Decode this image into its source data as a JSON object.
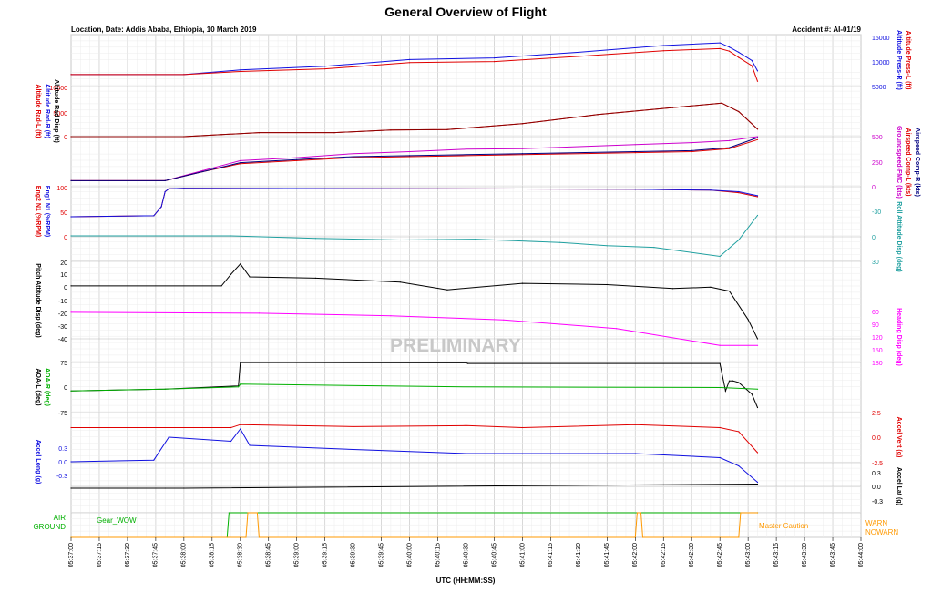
{
  "title": "General Overview of Flight",
  "location": "Location, Date: Addis Ababa, Ethiopia, 10 March 2019",
  "accident": "Accident #: AI-01/19",
  "watermark": "PRELIMINARY",
  "xlabel": "UTC (HH:MM:SS)",
  "colors": {
    "red": "#e00000",
    "darkred": "#8b0000",
    "blue": "#1010e0",
    "purple": "#cc00cc",
    "navy": "#000080",
    "teal": "#20a0a0",
    "black": "#000000",
    "magenta": "#ff00ff",
    "green": "#00b000",
    "orange": "#ff9900",
    "grid": "#cfcfcf",
    "gridMinor": "#ececec"
  },
  "chart_data": [
    {
      "type": "line",
      "panel": "altitude-press",
      "x_ticks": [
        "05:37:00",
        "05:37:15",
        "05:37:30",
        "05:37:45",
        "05:38:00",
        "05:38:15",
        "05:38:30",
        "05:38:45",
        "05:39:00",
        "05:39:15",
        "05:39:30",
        "05:39:45",
        "05:40:00",
        "05:40:15",
        "05:40:30",
        "05:40:45",
        "05:41:00",
        "05:41:15",
        "05:41:30",
        "05:41:45",
        "05:42:00",
        "05:42:15",
        "05:42:30",
        "05:42:45",
        "05:43:00",
        "05:43:15",
        "05:43:30",
        "05:43:45",
        "05:44:00"
      ],
      "right_labels": [
        "Altitude Press-R (ft)",
        "Altitude Press-L (ft)"
      ],
      "yticks": [
        "15000",
        "10000",
        "5000"
      ],
      "series": [
        {
          "name": "Altitude Press-R (ft)",
          "color": "blue",
          "t": [
            0,
            60,
            90,
            135,
            180,
            225,
            270,
            315,
            345,
            350,
            355,
            362,
            365
          ],
          "v": [
            7300,
            7300,
            8200,
            8900,
            10200,
            10500,
            11600,
            12900,
            13400,
            12600,
            11600,
            10000,
            8000
          ]
        },
        {
          "name": "Altitude Press-L (ft)",
          "color": "red",
          "t": [
            0,
            60,
            90,
            135,
            180,
            225,
            270,
            315,
            345,
            350,
            355,
            362,
            365
          ],
          "v": [
            7300,
            7300,
            7900,
            8400,
            9600,
            9800,
            10800,
            11900,
            12300,
            11800,
            10600,
            9000,
            6000
          ]
        }
      ]
    },
    {
      "type": "line",
      "panel": "altitude-rad",
      "left_labels": [
        "Altitude Rad-L (ft)",
        "Altitude Rad-R (ft)",
        "Altitude Rad Disp (ft)"
      ],
      "yticks": [
        "10000",
        "5000",
        "0"
      ],
      "series": [
        {
          "name": "Altitude Rad-L (ft)",
          "color": "red",
          "t": [
            0,
            60,
            80,
            100,
            140,
            170,
            200,
            240,
            280,
            320,
            346,
            355,
            365
          ],
          "v": [
            0,
            0,
            400,
            800,
            800,
            1300,
            1400,
            2600,
            4400,
            5800,
            6700,
            5000,
            1500
          ]
        },
        {
          "name": "Altitude Rad-R (ft)",
          "color": "darkred",
          "t": [
            0,
            60,
            80,
            100,
            140,
            170,
            200,
            240,
            280,
            320,
            346,
            355,
            365
          ],
          "v": [
            0,
            0,
            400,
            800,
            800,
            1300,
            1400,
            2600,
            4400,
            5800,
            6700,
            5000,
            1500
          ]
        }
      ]
    },
    {
      "type": "line",
      "panel": "airspeed",
      "right_labels": [
        "Groundspeed-FMC (kts)",
        "Airspeed Comp-L (kts)",
        "Airspeed Comp-R (kts)"
      ],
      "yticks": [
        "500",
        "250",
        "0"
      ],
      "series": [
        {
          "name": "Groundspeed-FMC (kts)",
          "color": "purple",
          "t": [
            0,
            50,
            70,
            90,
            120,
            150,
            180,
            210,
            240,
            270,
            300,
            330,
            350,
            365
          ],
          "v": [
            60,
            60,
            160,
            260,
            290,
            330,
            350,
            375,
            380,
            400,
            420,
            440,
            460,
            500
          ]
        },
        {
          "name": "Airspeed Comp-L (kts)",
          "color": "red",
          "t": [
            0,
            50,
            70,
            90,
            120,
            150,
            180,
            210,
            240,
            270,
            300,
            330,
            350,
            365
          ],
          "v": [
            60,
            60,
            150,
            230,
            260,
            290,
            300,
            310,
            320,
            330,
            340,
            350,
            380,
            470
          ]
        },
        {
          "name": "Airspeed Comp-R (kts)",
          "color": "navy",
          "t": [
            0,
            50,
            70,
            90,
            120,
            150,
            180,
            210,
            240,
            270,
            300,
            330,
            350,
            365
          ],
          "v": [
            60,
            60,
            150,
            240,
            270,
            300,
            310,
            320,
            330,
            340,
            350,
            360,
            390,
            490
          ]
        }
      ]
    },
    {
      "type": "line",
      "panel": "n1",
      "left_labels": [
        "Eng2 N1 (%RPM)",
        "Eng1 N1 (%RPM)"
      ],
      "yticks": [
        "100",
        "50",
        "0"
      ],
      "series": [
        {
          "name": "Eng2 N1 (%RPM)",
          "color": "red",
          "t": [
            0,
            44,
            48,
            50,
            52,
            60,
            300,
            340,
            355,
            365
          ],
          "v": [
            40,
            42,
            60,
            90,
            96,
            97,
            95,
            93,
            88,
            80
          ]
        },
        {
          "name": "Eng1 N1 (%RPM)",
          "color": "blue",
          "t": [
            0,
            44,
            48,
            50,
            52,
            60,
            300,
            340,
            355,
            365
          ],
          "v": [
            40,
            42,
            60,
            90,
            96,
            97,
            95,
            93,
            90,
            82
          ]
        }
      ]
    },
    {
      "type": "line",
      "panel": "roll",
      "right_labels": [
        "Roll Attitude Disp (deg)"
      ],
      "yticks": [
        "-30",
        "0",
        "30"
      ],
      "series": [
        {
          "name": "Roll Attitude Disp (deg)",
          "color": "teal",
          "t": [
            0,
            85,
            130,
            175,
            215,
            260,
            285,
            310,
            345,
            355,
            365
          ],
          "v": [
            0,
            0,
            3,
            5,
            4,
            8,
            12,
            14,
            25,
            5,
            -25
          ]
        }
      ]
    },
    {
      "type": "line",
      "panel": "pitch",
      "left_labels": [
        "Pitch Attitude Disp (deg)"
      ],
      "yticks": [
        "20",
        "10",
        "0",
        "-10",
        "-20",
        "-30",
        "-40"
      ],
      "series": [
        {
          "name": "Pitch Attitude Disp (deg)",
          "color": "black",
          "t": [
            0,
            80,
            85,
            90,
            95,
            130,
            175,
            200,
            240,
            285,
            320,
            340,
            350,
            360,
            365
          ],
          "v": [
            1,
            1,
            10,
            18,
            8,
            7,
            4,
            -2,
            3,
            2,
            -1,
            0,
            -3,
            -25,
            -40
          ]
        }
      ]
    },
    {
      "type": "line",
      "panel": "heading",
      "right_labels": [
        "Heading Disp (deg)"
      ],
      "yticks": [
        "60",
        "90",
        "120",
        "150",
        "180"
      ],
      "series": [
        {
          "name": "Heading Disp (deg)",
          "color": "magenta",
          "t": [
            0,
            100,
            170,
            230,
            290,
            345,
            365
          ],
          "v": [
            62,
            64,
            70,
            80,
            100,
            140,
            140
          ]
        }
      ]
    },
    {
      "type": "line",
      "panel": "aoa",
      "left_labels": [
        "AOA-L (deg)",
        "AOA-R (deg)"
      ],
      "yticks": [
        "75",
        "0",
        "-75"
      ],
      "series": [
        {
          "name": "AOA-L (deg)",
          "color": "black",
          "t": [
            0,
            50,
            89,
            90,
            210,
            211,
            345,
            348,
            350,
            352,
            355,
            362,
            365
          ],
          "v": [
            -10,
            -5,
            5,
            75,
            74,
            72,
            72,
            -10,
            20,
            20,
            15,
            -20,
            -60
          ]
        },
        {
          "name": "AOA-R (deg)",
          "color": "green",
          "t": [
            0,
            50,
            89,
            90,
            210,
            345,
            365
          ],
          "v": [
            -10,
            -5,
            2,
            10,
            2,
            0,
            -5
          ]
        }
      ]
    },
    {
      "type": "line",
      "panel": "accel-vert",
      "right_labels": [
        "Accel Vert (g)"
      ],
      "yticks": [
        "2.5",
        "0.0",
        "-2.5"
      ],
      "series": [
        {
          "name": "Accel Vert (g)",
          "color": "red",
          "t": [
            0,
            85,
            90,
            150,
            210,
            240,
            300,
            345,
            355,
            365
          ],
          "v": [
            1,
            1,
            1.3,
            1.1,
            1.2,
            1.0,
            1.3,
            1.0,
            0.6,
            -1.5
          ]
        }
      ]
    },
    {
      "type": "line",
      "panel": "accel-long",
      "left_labels": [
        "Accel Long (g)"
      ],
      "yticks": [
        "0.3",
        "0.0",
        "-0.3"
      ],
      "series": [
        {
          "name": "Accel Long (g)",
          "color": "blue",
          "t": [
            0,
            44,
            52,
            85,
            90,
            95,
            150,
            210,
            300,
            345,
            355,
            365
          ],
          "v": [
            0,
            0.02,
            0.3,
            0.25,
            0.4,
            0.2,
            0.15,
            0.1,
            0.1,
            0.05,
            -0.05,
            -0.25
          ]
        }
      ]
    },
    {
      "type": "line",
      "panel": "accel-lat",
      "right_labels": [
        "Accel Lat (g)"
      ],
      "yticks": [
        "0.3",
        "0.0",
        "-0.3"
      ],
      "series": [
        {
          "name": "Accel Lat (g)",
          "color": "black",
          "t": [
            0,
            50,
            60,
            365
          ],
          "v": [
            0,
            0,
            0,
            0.05
          ]
        }
      ]
    },
    {
      "type": "line",
      "panel": "discretes",
      "left_labels": [
        "AIR",
        "GROUND"
      ],
      "right_labels": [
        "WARN",
        "NOWARN"
      ],
      "annotations": [
        "Gear_WOW",
        "Master Caution"
      ],
      "series": [
        {
          "name": "Gear_WOW",
          "color": "green",
          "t": [
            0,
            83,
            84,
            365
          ],
          "v": [
            0,
            0,
            1,
            1
          ]
        },
        {
          "name": "Master Caution",
          "color": "orange",
          "t": [
            0,
            93,
            94,
            99,
            100,
            300,
            301,
            303,
            304,
            355,
            356,
            365
          ],
          "v": [
            0,
            0,
            1,
            1,
            0,
            0,
            1,
            1,
            0,
            0,
            1,
            1
          ]
        }
      ]
    }
  ]
}
